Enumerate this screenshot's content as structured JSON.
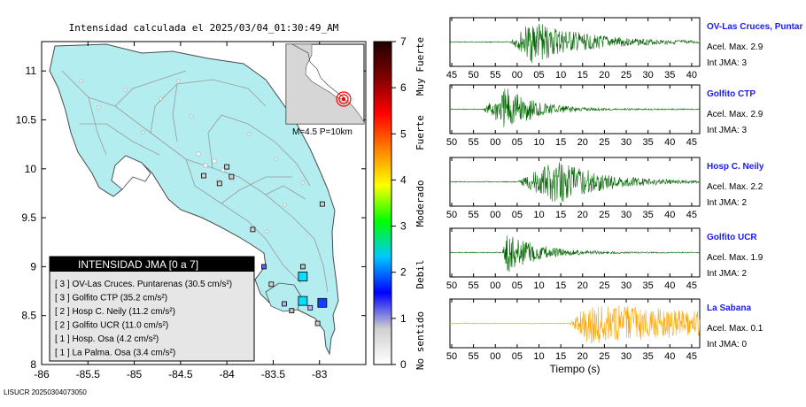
{
  "map_title": "Intensidad calculada el 2025/03/04_01:30:49_AM",
  "footer_id": "LISUCR 20250304073050",
  "inset": {
    "label": "M=4.5 P=10km"
  },
  "legend": {
    "title": "INTENSIDAD JMA [0 a 7]",
    "entries": [
      "[ 3 ]  OV-Las Cruces. Puntarenas (30.5 cm/s²)",
      "[ 3 ]  Golfito CTP (35.2 cm/s²)",
      "[ 2 ]  Hosp C. Neily (11.2 cm/s²)",
      "[ 2 ]  Golfito UCR (11.0 cm/s²)",
      "[ 1 ]  Hosp. Osa (4.2 cm/s²)",
      "[ 1 ]  La Palma. Osa (3.4 cm/s²)"
    ]
  },
  "colorbar": {
    "ticks": [
      "0",
      "1",
      "2",
      "3",
      "4",
      "5",
      "6",
      "7"
    ],
    "categories": [
      "No sentido",
      "Debil",
      "Moderado",
      "Fuerte",
      "Muy Fuerte"
    ],
    "colors": [
      "#ffffff",
      "#d0d0d0",
      "#0000ff",
      "#00c8ff",
      "#00ff00",
      "#ffff00",
      "#ff8000",
      "#ff0000",
      "#800000",
      "#200000"
    ]
  },
  "chart_data": [
    {
      "type": "scatter",
      "name": "intensity-map",
      "xlim": [
        -86,
        -82.5
      ],
      "ylim": [
        8,
        11.3
      ],
      "xticks": [
        "-86",
        "-85.5",
        "-85",
        "-84.5",
        "-84",
        "-83.5",
        "-83"
      ],
      "xtick_values": [
        -86,
        -85.5,
        -85,
        -84.5,
        -84,
        -83.5,
        -83
      ],
      "yticks": [
        "8",
        "8.5",
        "9",
        "9.5",
        "10",
        "10.5",
        "11"
      ],
      "ytick_values": [
        8,
        8.5,
        9,
        9.5,
        10,
        10.5,
        11
      ],
      "stations": [
        {
          "lon": -83.18,
          "lat": 8.9,
          "intensity": 3,
          "color": "#00e0ff",
          "size": "large"
        },
        {
          "lon": -83.18,
          "lat": 8.65,
          "intensity": 3,
          "color": "#00e0ff",
          "size": "large"
        },
        {
          "lon": -82.97,
          "lat": 8.63,
          "intensity": 2,
          "color": "#1040ff",
          "size": "large"
        },
        {
          "lon": -83.18,
          "lat": 9.0,
          "intensity": 1,
          "color": "#c0c0c0",
          "size": "small"
        },
        {
          "lon": -83.52,
          "lat": 8.82,
          "intensity": 1,
          "color": "#d0d0d0",
          "size": "small"
        },
        {
          "lon": -83.6,
          "lat": 9.0,
          "intensity": 2,
          "color": "#6060ff",
          "size": "small"
        },
        {
          "lon": -83.1,
          "lat": 8.58,
          "intensity": 1,
          "color": "#b0b0ff",
          "size": "small"
        },
        {
          "lon": -83.38,
          "lat": 8.62,
          "intensity": 1,
          "color": "#b0b0ff",
          "size": "small"
        },
        {
          "lon": -83.3,
          "lat": 8.55,
          "intensity": 1,
          "color": "#c0c0c0",
          "size": "small"
        },
        {
          "lon": -83.72,
          "lat": 9.38,
          "intensity": 1,
          "color": "#d0d0d0",
          "size": "small"
        },
        {
          "lon": -83.95,
          "lat": 9.92,
          "intensity": 1,
          "color": "#d0d0d0",
          "size": "small"
        },
        {
          "lon": -84.0,
          "lat": 10.02,
          "intensity": 1,
          "color": "#d0d0d0",
          "size": "small"
        },
        {
          "lon": -84.25,
          "lat": 9.93,
          "intensity": 1,
          "color": "#d0d0d0",
          "size": "small"
        },
        {
          "lon": -84.08,
          "lat": 9.85,
          "intensity": 1,
          "color": "#d0d0d0",
          "size": "small"
        },
        {
          "lon": -83.02,
          "lat": 8.42,
          "intensity": 1,
          "color": "#d0d0d0",
          "size": "small"
        },
        {
          "lon": -82.97,
          "lat": 9.64,
          "intensity": 1,
          "color": "#d0d0d0",
          "size": "small"
        }
      ]
    },
    {
      "type": "line",
      "name": "OV-Las Cruces, Puntar",
      "station_label": "OV-Las Cruces, Puntar",
      "accel_label": "Acel. Max. 2.9",
      "int_label": "Int JMA: 3",
      "color": "#006400",
      "xticks": [
        "45",
        "50",
        "55",
        "00",
        "05",
        "10",
        "15",
        "20",
        "25",
        "30",
        "35",
        "40"
      ],
      "onset": 0.24,
      "peak_at": 0.33,
      "amplitude": 0.95,
      "decay": 0.22,
      "noise": 0.02
    },
    {
      "type": "line",
      "name": "Golfito CTP",
      "station_label": "Golfito CTP",
      "accel_label": "Acel. Max. 2.9",
      "int_label": "Int JMA: 3",
      "color": "#006400",
      "xticks": [
        "50",
        "55",
        "00",
        "05",
        "10",
        "15",
        "20",
        "25",
        "30",
        "35",
        "40",
        "45"
      ],
      "onset": 0.13,
      "peak_at": 0.23,
      "amplitude": 1.0,
      "decay": 0.12,
      "noise": 0.02
    },
    {
      "type": "line",
      "name": "Hosp C. Neily",
      "station_label": "Hosp C. Neily",
      "accel_label": "Acel. Max. 2.2",
      "int_label": "Int JMA: 2",
      "color": "#006400",
      "xticks": [
        "50",
        "55",
        "00",
        "05",
        "10",
        "15",
        "20",
        "25",
        "30",
        "35",
        "40",
        "45"
      ],
      "onset": 0.27,
      "peak_at": 0.43,
      "amplitude": 1.0,
      "decay": 0.18,
      "noise": 0.02
    },
    {
      "type": "line",
      "name": "Golfito UCR",
      "station_label": "Golfito UCR",
      "accel_label": "Acel. Max. 1.9",
      "int_label": "Int JMA: 2",
      "color": "#006400",
      "xticks": [
        "50",
        "55",
        "00",
        "05",
        "10",
        "15",
        "20",
        "25",
        "30",
        "35",
        "40",
        "45"
      ],
      "onset": 0.21,
      "peak_at": 0.23,
      "amplitude": 0.95,
      "decay": 0.12,
      "noise": 0.02
    },
    {
      "type": "line",
      "name": "La Sabana",
      "station_label": "La Sabana",
      "accel_label": "Acel. Max. 0.1",
      "int_label": "Int JMA: 0",
      "color": "#ffa500",
      "xticks": [
        "50",
        "55",
        "00",
        "05",
        "10",
        "15",
        "20",
        "25",
        "30",
        "35",
        "40",
        "45"
      ],
      "xlabel": "Tiempo (s)",
      "onset": 0.48,
      "peak_at": 0.55,
      "amplitude": 0.9,
      "decay": 0.9,
      "noise": 0.02
    }
  ]
}
